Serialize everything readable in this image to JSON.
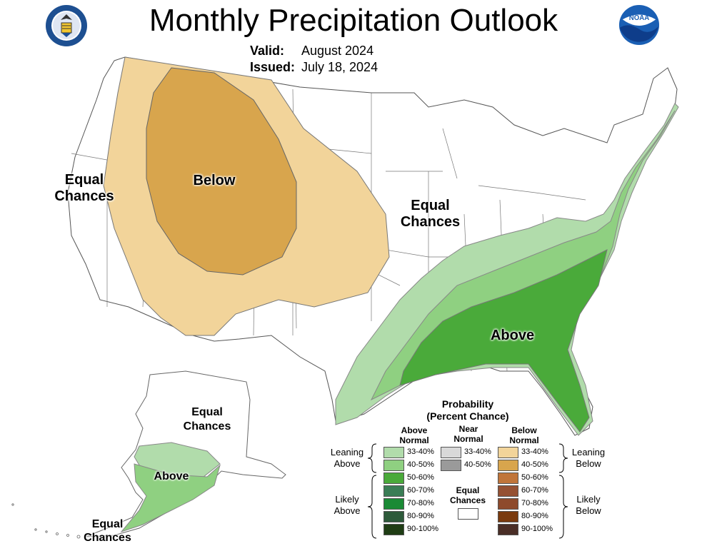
{
  "header": {
    "title": "Monthly Precipitation Outlook",
    "valid_label": "Valid:",
    "valid_value": "August 2024",
    "issued_label": "Issued:",
    "issued_value": "July 18, 2024"
  },
  "logos": {
    "left": "department-of-commerce-seal",
    "right": "noaa-logo",
    "right_text": "NOAA"
  },
  "map_labels": {
    "west_equal": "Equal Chances",
    "below": "Below",
    "central_equal": "Equal Chances",
    "above": "Above",
    "alaska_equal": "Equal Chances",
    "alaska_above": "Above",
    "aleutian_equal": "Equal Chances"
  },
  "legend": {
    "title_line1": "Probability",
    "title_line2": "(Percent Chance)",
    "col_above": "Above Normal",
    "col_near": "Near Normal",
    "col_below": "Below Normal",
    "leaning_above": "Leaning Above",
    "likely_above": "Likely Above",
    "leaning_below": "Leaning Below",
    "likely_below": "Likely Below",
    "equal_chances": "Equal Chances",
    "above": [
      {
        "label": "33-40%",
        "color": "#b1dcab"
      },
      {
        "label": "40-50%",
        "color": "#8fd081"
      },
      {
        "label": "50-60%",
        "color": "#4aaa3a"
      },
      {
        "label": "60-70%",
        "color": "#3a7d55"
      },
      {
        "label": "70-80%",
        "color": "#1a8a35"
      },
      {
        "label": "80-90%",
        "color": "#2d5a3a"
      },
      {
        "label": "90-100%",
        "color": "#1f3d14"
      }
    ],
    "near": [
      {
        "label": "33-40%",
        "color": "#d9d9d9"
      },
      {
        "label": "40-50%",
        "color": "#9a9a9a"
      }
    ],
    "below": [
      {
        "label": "33-40%",
        "color": "#f2d49a"
      },
      {
        "label": "40-50%",
        "color": "#d8a54d"
      },
      {
        "label": "50-60%",
        "color": "#c0753a"
      },
      {
        "label": "60-70%",
        "color": "#955133"
      },
      {
        "label": "70-80%",
        "color": "#8e4a2c"
      },
      {
        "label": "80-90%",
        "color": "#7a3a0e"
      },
      {
        "label": "90-100%",
        "color": "#4a2e26"
      }
    ]
  }
}
